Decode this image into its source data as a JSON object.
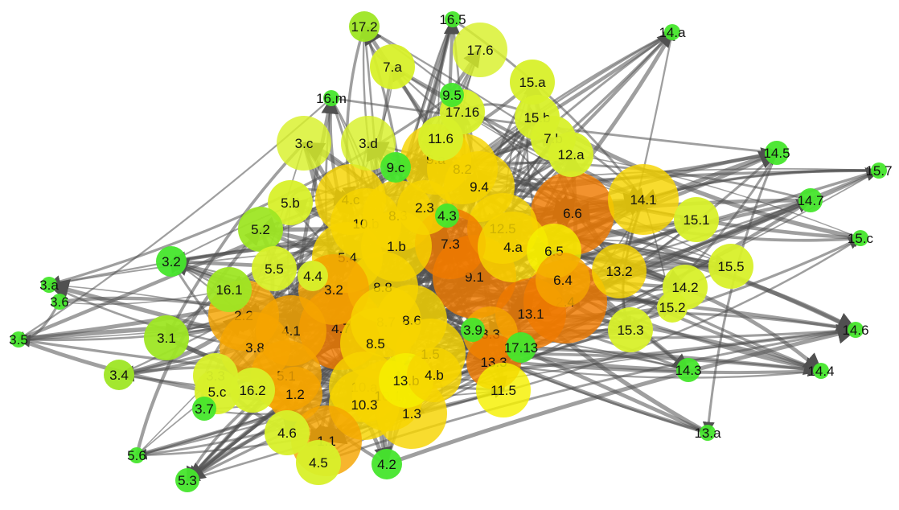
{
  "colors": {
    "green": "#46e62c",
    "lime": "#9ee624",
    "yellowgreen": "#d8f02a",
    "yellow": "#f5f000",
    "gold": "#f7d400",
    "orange": "#f5a500",
    "darkorange": "#ef7a00",
    "red": "#f22a00",
    "edge": "#505050"
  },
  "nodes": [
    {
      "id": "17.2",
      "c": "lime",
      "s": "m"
    },
    {
      "id": "16.5",
      "c": "green",
      "s": "xs"
    },
    {
      "id": "14.a",
      "c": "green",
      "s": "xs"
    },
    {
      "id": "7.a",
      "c": "yellowgreen",
      "s": "l"
    },
    {
      "id": "17.6",
      "c": "yellowgreen",
      "s": "xl"
    },
    {
      "id": "15.a",
      "c": "yellowgreen",
      "s": "l"
    },
    {
      "id": "9.5",
      "c": "green",
      "s": "s"
    },
    {
      "id": "16.m",
      "c": "green",
      "s": "xs"
    },
    {
      "id": "17.16",
      "c": "yellowgreen",
      "s": "l"
    },
    {
      "id": "15.b",
      "c": "yellowgreen",
      "s": "l"
    },
    {
      "id": "3.c",
      "c": "yellowgreen",
      "s": "xl"
    },
    {
      "id": "3.d",
      "c": "yellowgreen",
      "s": "xl"
    },
    {
      "id": "11.6",
      "c": "yellowgreen",
      "s": "l"
    },
    {
      "id": "7.b",
      "c": "yellowgreen",
      "s": "l"
    },
    {
      "id": "12.a",
      "c": "yellowgreen",
      "s": "l"
    },
    {
      "id": "14.5",
      "c": "green",
      "s": "s"
    },
    {
      "id": "9.a",
      "c": "gold",
      "s": "xxl"
    },
    {
      "id": "9.c",
      "c": "green",
      "s": "m"
    },
    {
      "id": "8.2",
      "c": "gold",
      "s": "xxl"
    },
    {
      "id": "15.7",
      "c": "green",
      "s": "xs"
    },
    {
      "id": "9.4",
      "c": "gold",
      "s": "xxl"
    },
    {
      "id": "4.c",
      "c": "gold",
      "s": "xxl"
    },
    {
      "id": "5.b",
      "c": "yellowgreen",
      "s": "l"
    },
    {
      "id": "14.7",
      "c": "green",
      "s": "s"
    },
    {
      "id": "14.1",
      "c": "gold",
      "s": "xxl"
    },
    {
      "id": "6.6",
      "c": "darkorange",
      "s": "xxxl"
    },
    {
      "id": "2.3",
      "c": "gold",
      "s": "xl"
    },
    {
      "id": "10.b",
      "c": "gold",
      "s": "xxl"
    },
    {
      "id": "8.3",
      "c": "gold",
      "s": "xxl"
    },
    {
      "id": "4.3",
      "c": "green",
      "s": "s"
    },
    {
      "id": "15.1",
      "c": "yellowgreen",
      "s": "l"
    },
    {
      "id": "5.2",
      "c": "lime",
      "s": "l"
    },
    {
      "id": "12.5",
      "c": "gold",
      "s": "xxl"
    },
    {
      "id": "15.c",
      "c": "green",
      "s": "xs"
    },
    {
      "id": "7.3",
      "c": "darkorange",
      "s": "xxl"
    },
    {
      "id": "1.b",
      "c": "gold",
      "s": "xxl"
    },
    {
      "id": "4.a",
      "c": "gold",
      "s": "xxl"
    },
    {
      "id": "3.2",
      "c": "green",
      "s": "m"
    },
    {
      "id": "6.5",
      "c": "yellow",
      "s": "xl"
    },
    {
      "id": "5.4",
      "c": "gold",
      "s": "xxl"
    },
    {
      "id": "5.5",
      "c": "yellowgreen",
      "s": "l"
    },
    {
      "id": "15.5",
      "c": "yellowgreen",
      "s": "l"
    },
    {
      "id": "13.2",
      "c": "gold",
      "s": "xl"
    },
    {
      "id": "3.a",
      "c": "green",
      "s": "xs"
    },
    {
      "id": "4.4",
      "c": "yellowgreen",
      "s": "m"
    },
    {
      "id": "9.1",
      "c": "darkorange",
      "s": "xxxl"
    },
    {
      "id": "16.1",
      "c": "lime",
      "s": "l"
    },
    {
      "id": "8.8",
      "c": "gold",
      "s": "xxl"
    },
    {
      "id": "2.4",
      "c": "darkorange",
      "s": "xxxl"
    },
    {
      "id": "14.2",
      "c": "yellowgreen",
      "s": "l"
    },
    {
      "id": "3.6",
      "c": "green",
      "s": "xs"
    },
    {
      "id": "6.4",
      "c": "orange",
      "s": "xl"
    },
    {
      "id": "2.2",
      "c": "orange",
      "s": "xxl"
    },
    {
      "id": "3.2b",
      "c": "orange",
      "s": "xxl"
    },
    {
      "id": "13.1",
      "c": "darkorange",
      "s": "xxl"
    },
    {
      "id": "15.2",
      "c": "yellowgreen",
      "s": "m"
    },
    {
      "id": "3.5",
      "c": "green",
      "s": "xs"
    },
    {
      "id": "3.1",
      "c": "lime",
      "s": "l"
    },
    {
      "id": "8.7",
      "c": "gold",
      "s": "xxl"
    },
    {
      "id": "4.1",
      "c": "orange",
      "s": "xxl"
    },
    {
      "id": "4.7",
      "c": "darkorange",
      "s": "xxxl"
    },
    {
      "id": "8.6",
      "c": "gold",
      "s": "xxl"
    },
    {
      "id": "3.9",
      "c": "green",
      "s": "s"
    },
    {
      "id": "3.3b",
      "c": "orange",
      "s": "xl"
    },
    {
      "id": "15.3",
      "c": "yellowgreen",
      "s": "l"
    },
    {
      "id": "14.6",
      "c": "green",
      "s": "xs"
    },
    {
      "id": "3.8",
      "c": "orange",
      "s": "xxl"
    },
    {
      "id": "8.5",
      "c": "gold",
      "s": "xxl"
    },
    {
      "id": "1.5",
      "c": "gold",
      "s": "xxl"
    },
    {
      "id": "17.13",
      "c": "green",
      "s": "m"
    },
    {
      "id": "13.3",
      "c": "darkorange",
      "s": "xl"
    },
    {
      "id": "14.3",
      "c": "green",
      "s": "s"
    },
    {
      "id": "14.4",
      "c": "green",
      "s": "xs"
    },
    {
      "id": "3.4",
      "c": "lime",
      "s": "m"
    },
    {
      "id": "3.3",
      "c": "yellowgreen",
      "s": "l"
    },
    {
      "id": "5.1",
      "c": "orange",
      "s": "xxl"
    },
    {
      "id": "13.b",
      "c": "yellow",
      "s": "xl"
    },
    {
      "id": "4.b",
      "c": "gold",
      "s": "xl"
    },
    {
      "id": "16.2",
      "c": "yellowgreen",
      "s": "l"
    },
    {
      "id": "5.c",
      "c": "yellowgreen",
      "s": "l"
    },
    {
      "id": "10.a",
      "c": "gold",
      "s": "xxl"
    },
    {
      "id": "11.5",
      "c": "yellow",
      "s": "xl"
    },
    {
      "id": "1.2",
      "c": "orange",
      "s": "xl"
    },
    {
      "id": "10.1",
      "c": "gold",
      "s": "xxl"
    },
    {
      "id": "3.7",
      "c": "green",
      "s": "s"
    },
    {
      "id": "10.3",
      "c": "gold",
      "s": "xxl"
    },
    {
      "id": "1.3",
      "c": "gold",
      "s": "xxl"
    },
    {
      "id": "13.a",
      "c": "green",
      "s": "xs"
    },
    {
      "id": "4.6",
      "c": "yellowgreen",
      "s": "l"
    },
    {
      "id": "1.1",
      "c": "orange",
      "s": "xxl"
    },
    {
      "id": "5.6",
      "c": "green",
      "s": "xs"
    },
    {
      "id": "4.5",
      "c": "yellowgreen",
      "s": "l"
    },
    {
      "id": "4.2",
      "c": "green",
      "s": "m"
    },
    {
      "id": "5.3",
      "c": "green",
      "s": "s"
    }
  ],
  "labels": {
    "17.2": "17.2",
    "16.5": "16.5",
    "14.a": "14.a",
    "7.a": "7.a",
    "17.6": "17.6",
    "15.a": "15.a",
    "9.5": "9.5",
    "16.m": "16.m",
    "17.16": "17.16",
    "15.b": "15.b",
    "3.c": "3.c",
    "3.d": "3.d",
    "11.6": "11.6",
    "7.b": "7.b",
    "12.a": "12.a",
    "14.5": "14.5",
    "9.a": "9.a",
    "9.c": "9.c",
    "8.2": "8.2",
    "15.7": "15.7",
    "9.4": "9.4",
    "4.c": "4.c",
    "5.b": "5.b",
    "14.7": "14.7",
    "14.1": "14.1",
    "6.6": "6.6",
    "2.3": "2.3",
    "10.b": "10.b",
    "8.3": "8.3",
    "4.3": "4.3",
    "15.1": "15.1",
    "5.2": "5.2",
    "12.5": "12.5",
    "15.c": "15.c",
    "7.3": "7.3",
    "1.b": "1.b",
    "4.a": "4.a",
    "3.2": "3.2",
    "6.5": "6.5",
    "5.4": "5.4",
    "5.5": "5.5",
    "15.5": "15.5",
    "13.2": "13.2",
    "3.a": "3.a",
    "4.4": "4.4",
    "9.1": "9.1",
    "16.1": "16.1",
    "8.8": "8.8",
    "2.4": "2.4",
    "14.2": "14.2",
    "3.6": "3.6",
    "6.4": "6.4",
    "2.2": "2.2",
    "3.2b": "3.2",
    "13.1": "13.1",
    "15.2": "15.2",
    "3.5": "3.5",
    "3.1": "3.1",
    "8.7": "8.7",
    "4.1": "4.1",
    "4.7": "4.7",
    "8.6": "8.6",
    "3.9": "3.9",
    "3.3b": "3.3",
    "15.3": "15.3",
    "14.6": "14.6",
    "3.8": "3.8",
    "8.5": "8.5",
    "1.5": "1.5",
    "17.13": "17.13",
    "13.3": "13.3",
    "14.3": "14.3",
    "14.4": "14.4",
    "3.4": "3.4",
    "3.3": "3.3",
    "5.1": "5.1",
    "13.b": "13.b",
    "4.b": "4.b",
    "16.2": "16.2",
    "5.c": "5.c",
    "10.a": "10.a",
    "11.5": "11.5",
    "1.2": "1.2",
    "10.1": "10.1",
    "3.7": "3.7",
    "10.3": "10.3",
    "1.3": "1.3",
    "13.a": "13.a",
    "4.6": "4.6",
    "1.1": "1.1",
    "5.6": "5.6",
    "4.5": "4.5",
    "4.2": "4.2",
    "5.3": "5.3"
  }
}
